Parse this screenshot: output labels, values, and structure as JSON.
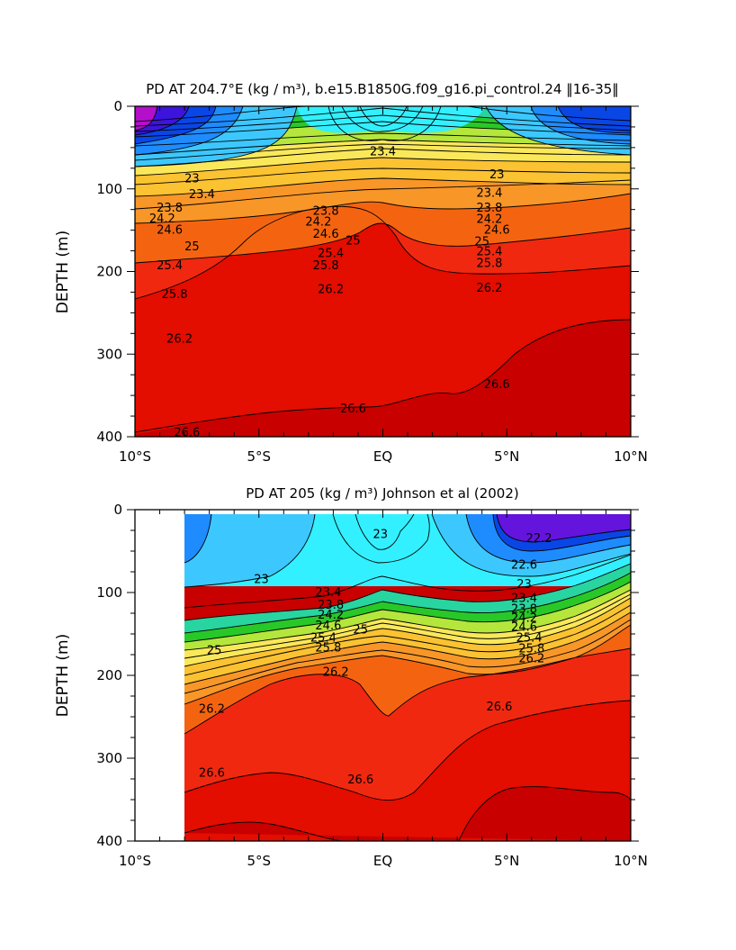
{
  "chart_data": [
    {
      "type": "contour",
      "title": "PD AT 204.7°E (kg / m³), b.e15.B1850G.f09_g16.pi_control.24 ‖16-35‖",
      "ylabel": "DEPTH (m)",
      "xlabel": "",
      "x_ticklabels": [
        "10°S",
        "5°S",
        "EQ",
        "5°N",
        "10°N"
      ],
      "y_ticklabels": [
        "0",
        "100",
        "200",
        "300",
        "400"
      ],
      "xlim": [
        -10,
        10
      ],
      "ylim": [
        400,
        0
      ],
      "data_extent": [
        -10,
        10
      ],
      "contour_interval": 0.2,
      "contour_labels": [
        {
          "text": "23.4",
          "x": 0,
          "y": 55
        },
        {
          "text": "23",
          "x": -7.7,
          "y": 88
        },
        {
          "text": "23",
          "x": 4.6,
          "y": 83
        },
        {
          "text": "23.4",
          "x": -7.3,
          "y": 107
        },
        {
          "text": "23.4",
          "x": 4.3,
          "y": 105
        },
        {
          "text": "23.8",
          "x": -8.6,
          "y": 123
        },
        {
          "text": "23.8",
          "x": -2.3,
          "y": 127
        },
        {
          "text": "23.8",
          "x": 4.3,
          "y": 123
        },
        {
          "text": "24.2",
          "x": -8.9,
          "y": 136
        },
        {
          "text": "24.2",
          "x": -2.6,
          "y": 140
        },
        {
          "text": "24.2",
          "x": 4.3,
          "y": 137
        },
        {
          "text": "24.6",
          "x": -8.6,
          "y": 150
        },
        {
          "text": "24.6",
          "x": -2.3,
          "y": 155
        },
        {
          "text": "24.6",
          "x": 4.6,
          "y": 150
        },
        {
          "text": "25",
          "x": -1.2,
          "y": 163
        },
        {
          "text": "25",
          "x": 4.0,
          "y": 164
        },
        {
          "text": "25",
          "x": -7.7,
          "y": 170
        },
        {
          "text": "25.4",
          "x": -2.1,
          "y": 178
        },
        {
          "text": "25.4",
          "x": 4.3,
          "y": 176
        },
        {
          "text": "25.4",
          "x": -8.6,
          "y": 193
        },
        {
          "text": "25.8",
          "x": -2.3,
          "y": 193
        },
        {
          "text": "25.8",
          "x": 4.3,
          "y": 190
        },
        {
          "text": "26.2",
          "x": -2.1,
          "y": 222
        },
        {
          "text": "26.2",
          "x": 4.3,
          "y": 220
        },
        {
          "text": "25.8",
          "x": -8.4,
          "y": 228
        },
        {
          "text": "26.2",
          "x": -8.2,
          "y": 282
        },
        {
          "text": "26.6",
          "x": 4.6,
          "y": 337
        },
        {
          "text": "26.6",
          "x": -1.2,
          "y": 366
        },
        {
          "text": "26.6",
          "x": -7.9,
          "y": 395
        }
      ]
    },
    {
      "type": "contour",
      "title": "PD AT 205 (kg / m³) Johnson et al (2002)",
      "ylabel": "DEPTH (m)",
      "xlabel": "",
      "x_ticklabels": [
        "10°S",
        "5°S",
        "EQ",
        "5°N",
        "10°N"
      ],
      "y_ticklabels": [
        "0",
        "100",
        "200",
        "300",
        "400"
      ],
      "xlim": [
        -10,
        10
      ],
      "ylim": [
        400,
        0
      ],
      "data_extent": [
        -8,
        10
      ],
      "contour_interval": 0.2,
      "contour_labels": [
        {
          "text": "22.2",
          "x": 6.3,
          "y": 35
        },
        {
          "text": "23",
          "x": -0.1,
          "y": 30
        },
        {
          "text": "22.6",
          "x": 5.7,
          "y": 67
        },
        {
          "text": "23",
          "x": -4.9,
          "y": 84
        },
        {
          "text": "23",
          "x": 5.7,
          "y": 90
        },
        {
          "text": "23.4",
          "x": -2.2,
          "y": 100
        },
        {
          "text": "23.4",
          "x": 5.7,
          "y": 107
        },
        {
          "text": "23.8",
          "x": -2.1,
          "y": 115
        },
        {
          "text": "23.8",
          "x": 5.7,
          "y": 120
        },
        {
          "text": "24.2",
          "x": -2.1,
          "y": 127
        },
        {
          "text": "24.2",
          "x": 5.7,
          "y": 131
        },
        {
          "text": "24.6",
          "x": -2.2,
          "y": 140
        },
        {
          "text": "24.6",
          "x": 5.7,
          "y": 142
        },
        {
          "text": "25",
          "x": -0.9,
          "y": 145
        },
        {
          "text": "25.4",
          "x": -2.4,
          "y": 155
        },
        {
          "text": "25.4",
          "x": 5.9,
          "y": 155
        },
        {
          "text": "25",
          "x": -6.8,
          "y": 170
        },
        {
          "text": "25.8",
          "x": -2.2,
          "y": 167
        },
        {
          "text": "25.8",
          "x": 6.0,
          "y": 168
        },
        {
          "text": "26.2",
          "x": -1.9,
          "y": 196
        },
        {
          "text": "26.2",
          "x": 6.0,
          "y": 180
        },
        {
          "text": "26.2",
          "x": -6.9,
          "y": 241
        },
        {
          "text": "26.6",
          "x": 4.7,
          "y": 238
        },
        {
          "text": "26.6",
          "x": -6.9,
          "y": 318
        },
        {
          "text": "26.6",
          "x": -0.9,
          "y": 326
        }
      ]
    }
  ]
}
